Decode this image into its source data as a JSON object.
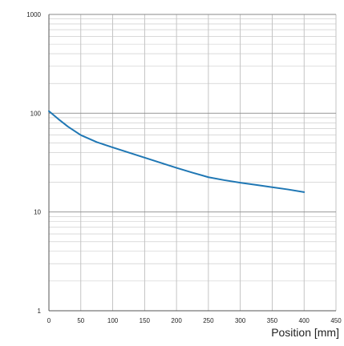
{
  "chart_data": {
    "type": "line",
    "title": "",
    "xlabel": "Position [mm]",
    "ylabel": "",
    "x_scale": "linear",
    "y_scale": "log",
    "xlim": [
      0,
      450
    ],
    "ylim": [
      1,
      1000
    ],
    "x_ticks": [
      0,
      50,
      100,
      150,
      200,
      250,
      300,
      350,
      400,
      450
    ],
    "y_ticks": [
      1,
      10,
      100,
      1000
    ],
    "grid": true,
    "series": [
      {
        "x": [
          0,
          15,
          30,
          50,
          75,
          100,
          125,
          150,
          175,
          200,
          225,
          250,
          275,
          300,
          325,
          350,
          375,
          400
        ],
        "y": [
          105,
          87,
          73,
          60,
          51,
          45,
          40,
          35.5,
          31.5,
          28,
          25,
          22.5,
          21,
          19.8,
          18.8,
          17.8,
          16.9,
          15.9
        ],
        "color": "#1f77b4"
      }
    ]
  }
}
